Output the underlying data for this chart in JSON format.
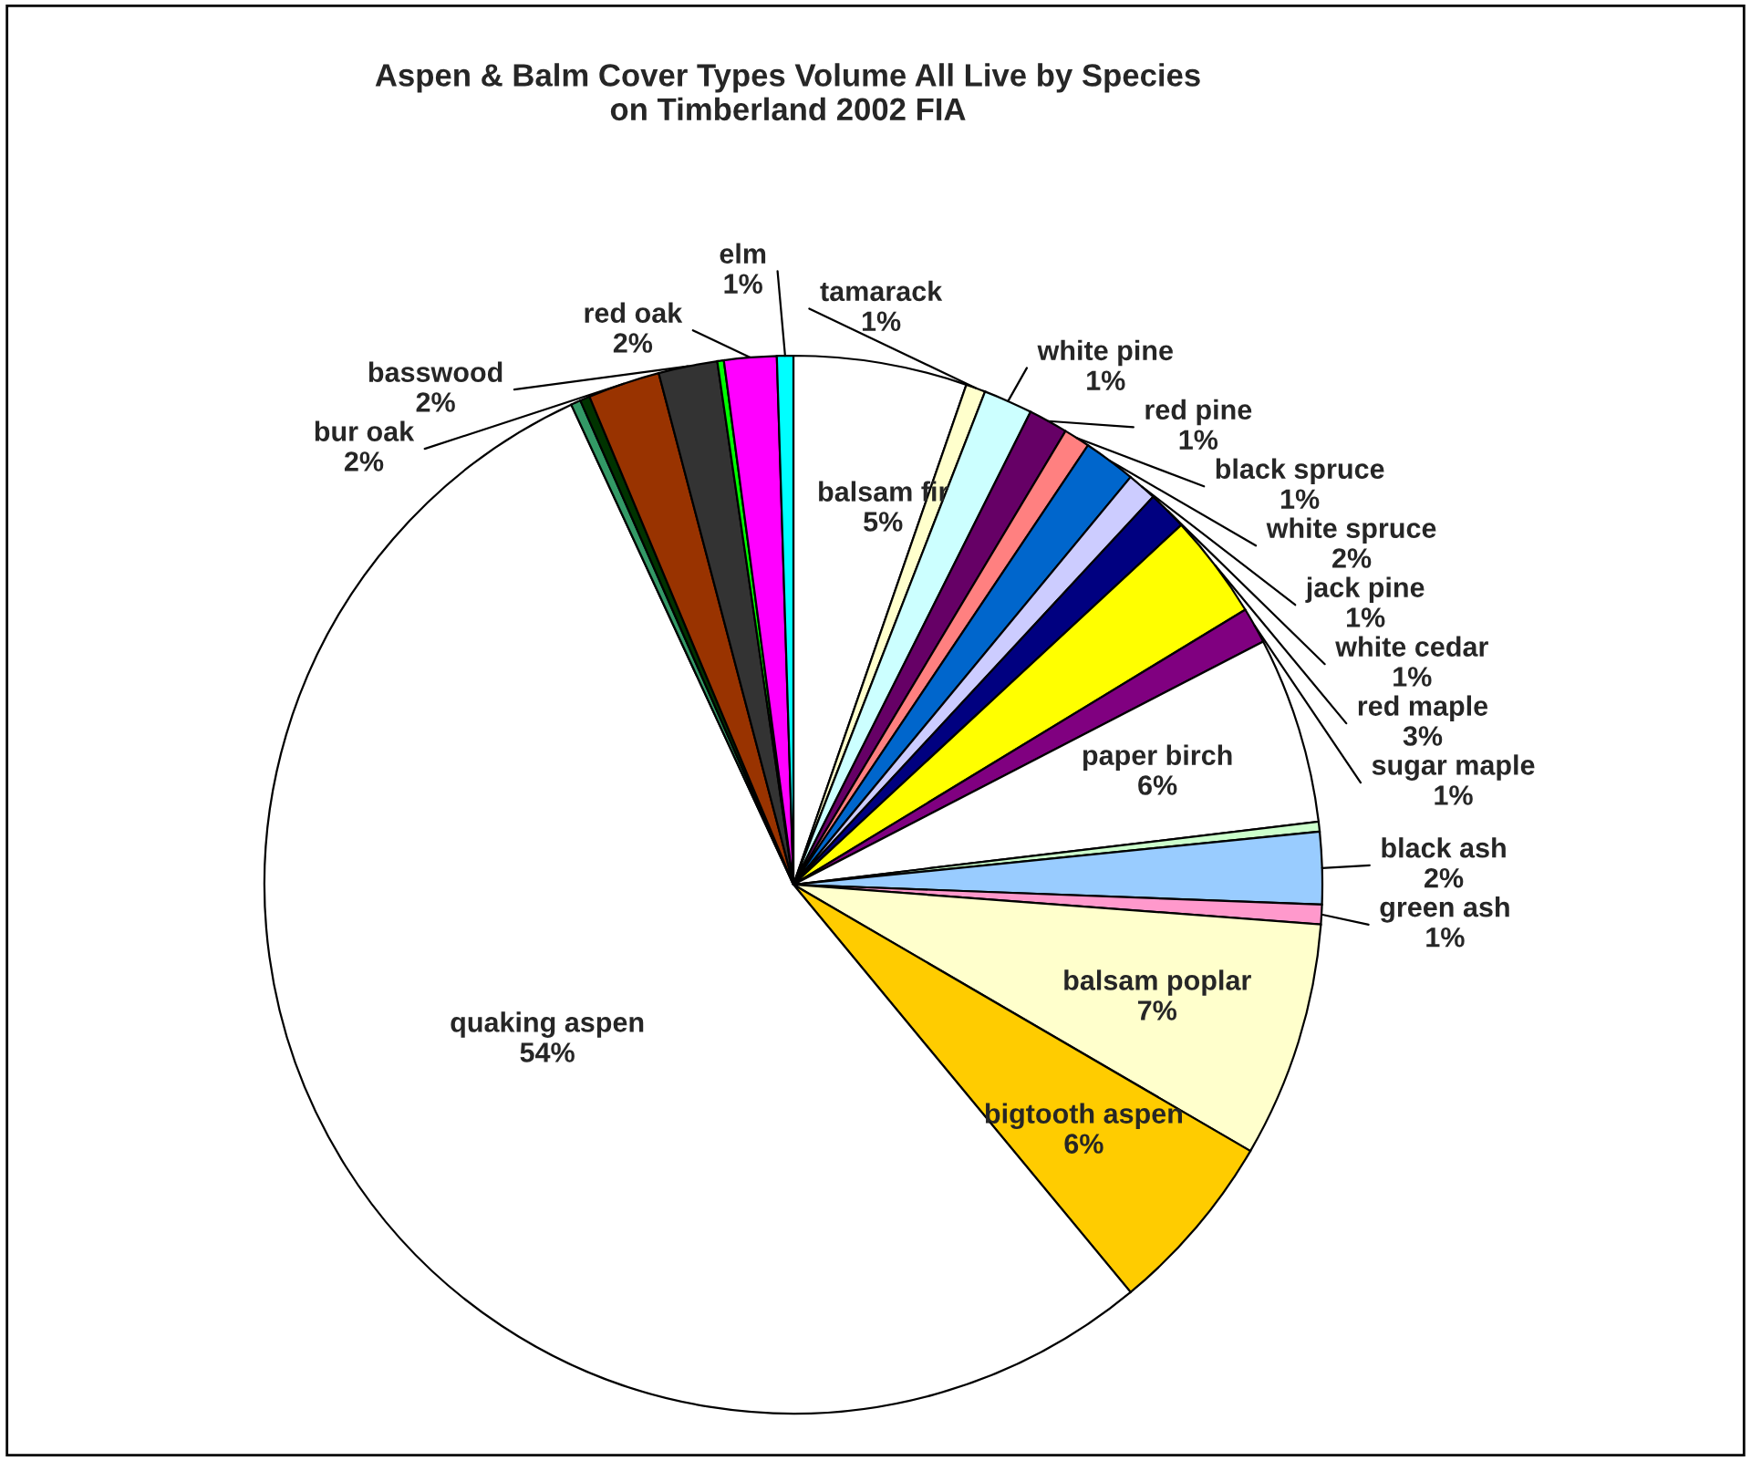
{
  "chart_data": {
    "type": "pie",
    "title": "Aspen & Balm Cover Types Volume All Live by Species\non Timberland 2002 FIA",
    "categories": [
      "balsam fir",
      "tamarack",
      "white pine",
      "red pine",
      "black spruce",
      "white spruce",
      "jack pine",
      "white cedar",
      "red maple",
      "sugar maple",
      "paper birch",
      null,
      "black ash",
      "green ash",
      "balsam poplar",
      "bigtooth aspen",
      "quaking aspen",
      null,
      null,
      "bur oak",
      "basswood",
      null,
      "red oak",
      "elm"
    ],
    "values": [
      5.3,
      0.6,
      1.5,
      1.2,
      0.8,
      1.6,
      0.9,
      1.2,
      3.2,
      1.1,
      5.7,
      0.3,
      2.2,
      0.6,
      7.2,
      5.6,
      54.1,
      0.3,
      0.3,
      2.2,
      1.8,
      0.2,
      1.6,
      0.5
    ],
    "value_labels": [
      "5%",
      "1%",
      "1%",
      "1%",
      "1%",
      "2%",
      "1%",
      "1%",
      "3%",
      "1%",
      "6%",
      null,
      "2%",
      "1%",
      "7%",
      "6%",
      "54%",
      null,
      null,
      "2%",
      "2%",
      null,
      "2%",
      "1%"
    ],
    "colors": [
      "#ffffff",
      "#ffffcc",
      "#ccffff",
      "#660066",
      "#ff8080",
      "#0066cc",
      "#ccccff",
      "#000080",
      "#ffff00",
      "#800080",
      "#ffffff",
      "#ccffcc",
      "#99ccff",
      "#ff99cc",
      "#ffffcc",
      "#ffcc00",
      "#ffffff",
      "#339966",
      "#003300",
      "#993300",
      "#333333",
      "#00ff00",
      "#ff00ff",
      "#00ffff"
    ]
  }
}
